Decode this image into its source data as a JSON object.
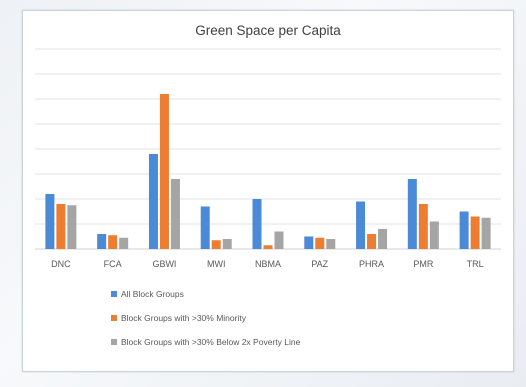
{
  "colors": {
    "all": "#4a8ad6",
    "minority": "#ed7d31",
    "poverty": "#a5a5a5",
    "grid": "#e3e3e3",
    "text": "#595959",
    "title": "#404040"
  },
  "chart_data": {
    "type": "bar",
    "title": "Green Space per Capita",
    "xlabel": "",
    "ylabel": "",
    "ylim": [
      0,
      8
    ],
    "grid": true,
    "legend_position": "bottom",
    "categories": [
      "DNC",
      "FCA",
      "GBWI",
      "MWI",
      "NBMA",
      "PAZ",
      "PHRA",
      "PMR",
      "TRL"
    ],
    "series": [
      {
        "name": "All Block Groups",
        "values": [
          2.2,
          0.6,
          3.8,
          1.7,
          2.0,
          0.5,
          1.9,
          2.8,
          1.5
        ]
      },
      {
        "name": "Block Groups with >30% Minority",
        "values": [
          1.8,
          0.55,
          6.2,
          0.35,
          0.15,
          0.45,
          0.6,
          1.8,
          1.3
        ]
      },
      {
        "name": "Block Groups with >30% Below 2x Poverty Line",
        "values": [
          1.75,
          0.45,
          2.8,
          0.4,
          0.7,
          0.4,
          0.8,
          1.1,
          1.25
        ]
      }
    ]
  }
}
